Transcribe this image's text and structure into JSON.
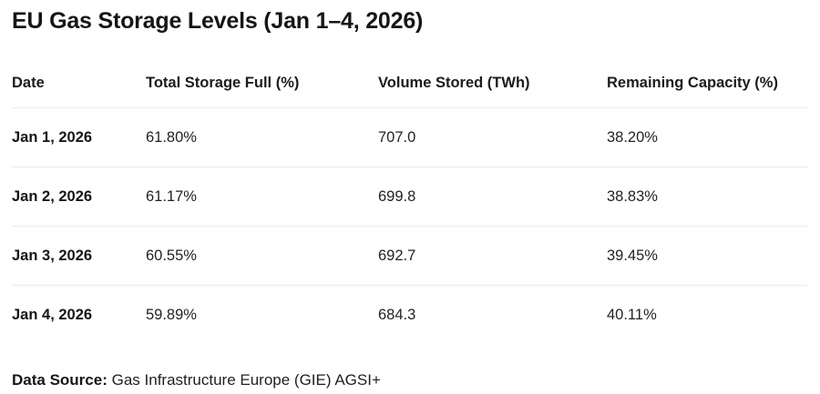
{
  "page": {
    "title": "EU Gas Storage Levels (Jan 1–4, 2026)"
  },
  "table": {
    "columns": [
      "Date",
      "Total Storage Full (%)",
      "Volume Stored (TWh)",
      "Remaining Capacity (%)"
    ],
    "rows": [
      [
        "Jan 1, 2026",
        "61.80%",
        "707.0",
        "38.20%"
      ],
      [
        "Jan 2, 2026",
        "61.17%",
        "699.8",
        "38.83%"
      ],
      [
        "Jan 3, 2026",
        "60.55%",
        "692.7",
        "39.45%"
      ],
      [
        "Jan 4, 2026",
        "59.89%",
        "684.3",
        "40.11%"
      ]
    ]
  },
  "footer": {
    "label": "Data Source:",
    "value": "Gas Infrastructure Europe (GIE) AGSI+"
  },
  "colors": {
    "text": "#1f1f1f",
    "divider": "#e9eaee",
    "background": "#ffffff"
  },
  "chart_data": {
    "type": "table",
    "title": "EU Gas Storage Levels (Jan 1–4, 2026)",
    "columns": [
      "Date",
      "Total Storage Full (%)",
      "Volume Stored (TWh)",
      "Remaining Capacity (%)"
    ],
    "rows": [
      {
        "date": "Jan 1, 2026",
        "total_storage_full_pct": 61.8,
        "volume_stored_twh": 707.0,
        "remaining_capacity_pct": 38.2
      },
      {
        "date": "Jan 2, 2026",
        "total_storage_full_pct": 61.17,
        "volume_stored_twh": 699.8,
        "remaining_capacity_pct": 38.83
      },
      {
        "date": "Jan 3, 2026",
        "total_storage_full_pct": 60.55,
        "volume_stored_twh": 692.7,
        "remaining_capacity_pct": 39.45
      },
      {
        "date": "Jan 4, 2026",
        "total_storage_full_pct": 59.89,
        "volume_stored_twh": 684.3,
        "remaining_capacity_pct": 40.11
      }
    ],
    "source": "Gas Infrastructure Europe (GIE) AGSI+"
  }
}
